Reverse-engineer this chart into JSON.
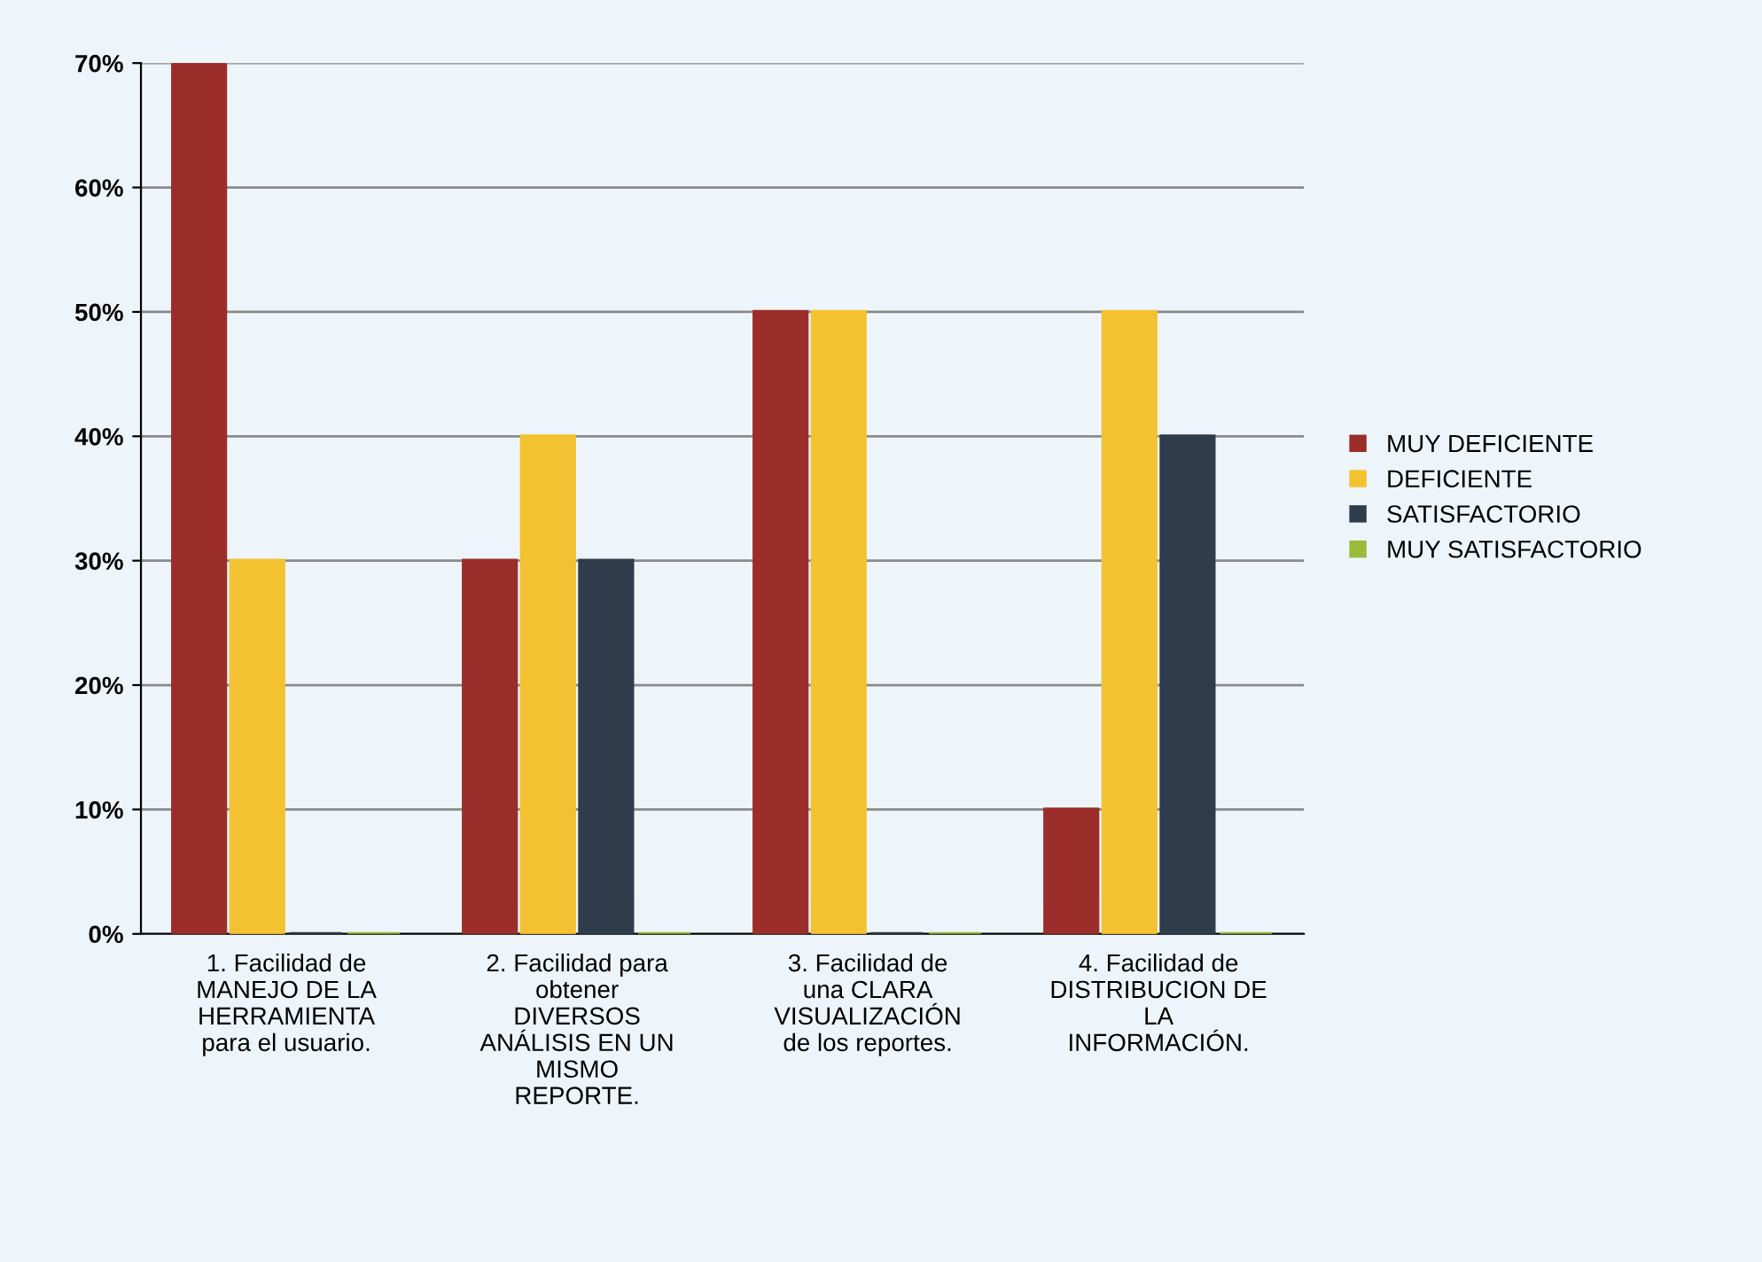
{
  "chart_data": {
    "type": "bar",
    "categories": [
      "1. Facilidad de\nMANEJO DE LA\nHERRAMIENTA\npara el usuario.",
      "2. Facilidad para\nobtener\nDIVERSOS\nANÁLISIS EN UN\nMISMO\nREPORTE.",
      "3. Facilidad de\nuna CLARA\nVISUALIZACIÓN\nde los reportes.",
      "4. Facilidad de\nDISTRIBUCION DE\nLA\nINFORMACIÓN."
    ],
    "series": [
      {
        "name": "MUY DEFICIENTE",
        "color": "#9b2d2a",
        "values": [
          70,
          30,
          50,
          10
        ]
      },
      {
        "name": "DEFICIENTE",
        "color": "#f2c230",
        "values": [
          30,
          40,
          50,
          50
        ]
      },
      {
        "name": "SATISFACTORIO",
        "color": "#2f3c4c",
        "values": [
          0,
          30,
          0,
          40
        ]
      },
      {
        "name": "MUY SATISFACTORIO",
        "color": "#9bbb3b",
        "values": [
          0,
          0,
          0,
          0
        ]
      }
    ],
    "ylim": [
      0,
      70
    ],
    "yticks": [
      {
        "value": 0,
        "label": "0%"
      },
      {
        "value": 10,
        "label": "10%"
      },
      {
        "value": 20,
        "label": "20%"
      },
      {
        "value": 30,
        "label": "30%"
      },
      {
        "value": 40,
        "label": "40%"
      },
      {
        "value": 50,
        "label": "50%"
      },
      {
        "value": 60,
        "label": "60%"
      },
      {
        "value": 70,
        "label": "70%"
      }
    ],
    "grid": "y",
    "legend": "right"
  }
}
